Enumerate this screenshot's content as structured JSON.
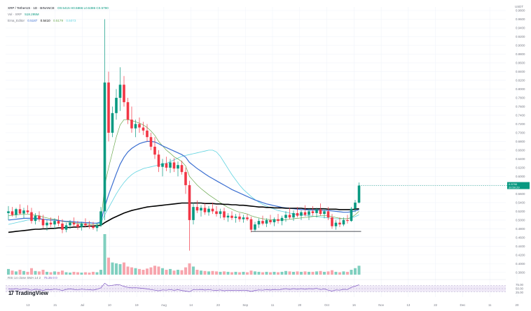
{
  "legend": {
    "symbol": "XRP / TetherUS · 1D · BINANCE",
    "ohlc": "O0.5415 H0.5866 L0.5386 C0.5790",
    "vol_label": "Vol · XRP",
    "vol_value": "518.295M",
    "ema_label": "Ema_Editor",
    "ema_values": [
      "0.5187",
      "0.5410",
      "0.5179",
      "0.5073"
    ]
  },
  "rsi_label": "RSI 14 close SMA 14 2",
  "rsi_values": "75.35   0   0",
  "price_tag": "0.5790",
  "price_tag_sub": "20:50:29",
  "top_right": "USDT",
  "logo_text": "TradingView",
  "colors": {
    "up": "#089981",
    "down": "#f23645",
    "ema_blue": "#3b6fd1",
    "ema_black": "#000000",
    "ema_green": "#6aa84f",
    "ema_cyan": "#5fd3e0",
    "rsi_line": "#7e57c2",
    "rsi_band": "#efe9f7"
  },
  "chart_data": {
    "type": "candlestick",
    "symbol": "XRP / TetherUS",
    "timeframe": "1D",
    "y_axis": {
      "labels": [
        "0.9800",
        "0.9600",
        "0.9400",
        "0.9200",
        "0.9000",
        "0.8800",
        "0.8600",
        "0.8400",
        "0.8200",
        "0.8000",
        "0.7800",
        "0.7600",
        "0.7400",
        "0.7200",
        "0.7000",
        "0.6800",
        "0.6600",
        "0.6400",
        "0.6200",
        "0.6000",
        "0.5800",
        "0.5600",
        "0.5400",
        "0.5200",
        "0.5000",
        "0.4800",
        "0.4600",
        "0.4400",
        "0.4200",
        "0.4000",
        "0.3800"
      ],
      "range": [
        0.375,
        0.988
      ]
    },
    "x_axis": {
      "labels": [
        "13",
        "21",
        "Jul",
        "10",
        "19",
        "Aug",
        "14",
        "23",
        "Sep",
        "11",
        "20",
        "Oct",
        "16",
        "Nov",
        "13",
        "22",
        "Dec",
        "11",
        "20"
      ]
    },
    "support_line": 0.474,
    "candles": [
      [
        0.516,
        0.532,
        0.5,
        0.52
      ],
      [
        0.52,
        0.53,
        0.508,
        0.512
      ],
      [
        0.512,
        0.528,
        0.505,
        0.525
      ],
      [
        0.525,
        0.536,
        0.512,
        0.515
      ],
      [
        0.515,
        0.528,
        0.504,
        0.522
      ],
      [
        0.522,
        0.534,
        0.514,
        0.518
      ],
      [
        0.518,
        0.528,
        0.492,
        0.498
      ],
      [
        0.498,
        0.516,
        0.49,
        0.51
      ],
      [
        0.51,
        0.52,
        0.496,
        0.502
      ],
      [
        0.502,
        0.512,
        0.482,
        0.488
      ],
      [
        0.488,
        0.5,
        0.476,
        0.494
      ],
      [
        0.494,
        0.506,
        0.484,
        0.49
      ],
      [
        0.49,
        0.504,
        0.48,
        0.498
      ],
      [
        0.498,
        0.51,
        0.486,
        0.492
      ],
      [
        0.492,
        0.502,
        0.47,
        0.478
      ],
      [
        0.478,
        0.494,
        0.472,
        0.488
      ],
      [
        0.488,
        0.5,
        0.48,
        0.494
      ],
      [
        0.494,
        0.506,
        0.484,
        0.49
      ],
      [
        0.49,
        0.498,
        0.478,
        0.484
      ],
      [
        0.484,
        0.496,
        0.476,
        0.492
      ],
      [
        0.492,
        0.504,
        0.484,
        0.488
      ],
      [
        0.488,
        0.498,
        0.48,
        0.486
      ],
      [
        0.486,
        0.496,
        0.478,
        0.482
      ],
      [
        0.482,
        0.494,
        0.474,
        0.488
      ],
      [
        0.488,
        0.53,
        0.484,
        0.52
      ],
      [
        0.52,
        0.96,
        0.5,
        0.815
      ],
      [
        0.815,
        0.84,
        0.68,
        0.7
      ],
      [
        0.7,
        0.76,
        0.69,
        0.745
      ],
      [
        0.745,
        0.8,
        0.73,
        0.78
      ],
      [
        0.78,
        0.85,
        0.75,
        0.81
      ],
      [
        0.81,
        0.83,
        0.76,
        0.77
      ],
      [
        0.77,
        0.78,
        0.72,
        0.73
      ],
      [
        0.73,
        0.76,
        0.7,
        0.71
      ],
      [
        0.71,
        0.73,
        0.69,
        0.72
      ],
      [
        0.72,
        0.735,
        0.7,
        0.712
      ],
      [
        0.712,
        0.725,
        0.695,
        0.705
      ],
      [
        0.705,
        0.72,
        0.68,
        0.69
      ],
      [
        0.69,
        0.7,
        0.66,
        0.668
      ],
      [
        0.668,
        0.69,
        0.64,
        0.65
      ],
      [
        0.65,
        0.66,
        0.61,
        0.622
      ],
      [
        0.622,
        0.64,
        0.6,
        0.63
      ],
      [
        0.63,
        0.645,
        0.612,
        0.62
      ],
      [
        0.62,
        0.64,
        0.608,
        0.632
      ],
      [
        0.632,
        0.642,
        0.61,
        0.618
      ],
      [
        0.618,
        0.634,
        0.6,
        0.626
      ],
      [
        0.626,
        0.636,
        0.604,
        0.61
      ],
      [
        0.61,
        0.62,
        0.56,
        0.58
      ],
      [
        0.58,
        0.59,
        0.43,
        0.5
      ],
      [
        0.5,
        0.54,
        0.49,
        0.53
      ],
      [
        0.53,
        0.545,
        0.516,
        0.522
      ],
      [
        0.522,
        0.534,
        0.508,
        0.528
      ],
      [
        0.528,
        0.538,
        0.512,
        0.518
      ],
      [
        0.518,
        0.532,
        0.51,
        0.526
      ],
      [
        0.526,
        0.54,
        0.514,
        0.52
      ],
      [
        0.52,
        0.532,
        0.508,
        0.514
      ],
      [
        0.514,
        0.526,
        0.504,
        0.52
      ],
      [
        0.52,
        0.528,
        0.5,
        0.506
      ],
      [
        0.506,
        0.516,
        0.496,
        0.51
      ],
      [
        0.51,
        0.52,
        0.5,
        0.505
      ],
      [
        0.505,
        0.514,
        0.494,
        0.508
      ],
      [
        0.508,
        0.516,
        0.496,
        0.502
      ],
      [
        0.502,
        0.512,
        0.494,
        0.506
      ],
      [
        0.506,
        0.514,
        0.498,
        0.502
      ],
      [
        0.502,
        0.508,
        0.472,
        0.478
      ],
      [
        0.478,
        0.496,
        0.474,
        0.49
      ],
      [
        0.49,
        0.504,
        0.482,
        0.498
      ],
      [
        0.498,
        0.51,
        0.488,
        0.492
      ],
      [
        0.492,
        0.504,
        0.484,
        0.5
      ],
      [
        0.5,
        0.512,
        0.49,
        0.495
      ],
      [
        0.495,
        0.506,
        0.486,
        0.502
      ],
      [
        0.502,
        0.514,
        0.492,
        0.498
      ],
      [
        0.498,
        0.51,
        0.488,
        0.505
      ],
      [
        0.505,
        0.52,
        0.496,
        0.512
      ],
      [
        0.512,
        0.528,
        0.502,
        0.506
      ],
      [
        0.506,
        0.522,
        0.498,
        0.516
      ],
      [
        0.516,
        0.53,
        0.506,
        0.51
      ],
      [
        0.51,
        0.522,
        0.5,
        0.518
      ],
      [
        0.518,
        0.534,
        0.508,
        0.512
      ],
      [
        0.512,
        0.526,
        0.5,
        0.52
      ],
      [
        0.52,
        0.532,
        0.51,
        0.516
      ],
      [
        0.516,
        0.528,
        0.506,
        0.524
      ],
      [
        0.524,
        0.538,
        0.51,
        0.514
      ],
      [
        0.514,
        0.526,
        0.504,
        0.52
      ],
      [
        0.52,
        0.53,
        0.5,
        0.506
      ],
      [
        0.506,
        0.514,
        0.48,
        0.486
      ],
      [
        0.486,
        0.5,
        0.478,
        0.494
      ],
      [
        0.494,
        0.506,
        0.484,
        0.49
      ],
      [
        0.49,
        0.506,
        0.486,
        0.5
      ],
      [
        0.5,
        0.512,
        0.492,
        0.498
      ],
      [
        0.498,
        0.53,
        0.496,
        0.526
      ],
      [
        0.526,
        0.546,
        0.518,
        0.54
      ],
      [
        0.54,
        0.586,
        0.538,
        0.579
      ]
    ],
    "volume_max": 1.0,
    "volume": [
      0.14,
      0.1,
      0.08,
      0.12,
      0.09,
      0.07,
      0.16,
      0.09,
      0.08,
      0.12,
      0.07,
      0.06,
      0.08,
      0.07,
      0.1,
      0.06,
      0.05,
      0.07,
      0.06,
      0.05,
      0.06,
      0.05,
      0.07,
      0.06,
      0.12,
      1.0,
      0.42,
      0.3,
      0.28,
      0.26,
      0.3,
      0.2,
      0.18,
      0.16,
      0.14,
      0.12,
      0.15,
      0.18,
      0.22,
      0.2,
      0.16,
      0.12,
      0.14,
      0.1,
      0.12,
      0.11,
      0.18,
      0.28,
      0.2,
      0.12,
      0.1,
      0.09,
      0.08,
      0.09,
      0.08,
      0.07,
      0.08,
      0.07,
      0.06,
      0.07,
      0.06,
      0.07,
      0.06,
      0.1,
      0.08,
      0.07,
      0.06,
      0.07,
      0.06,
      0.07,
      0.06,
      0.07,
      0.09,
      0.08,
      0.07,
      0.08,
      0.07,
      0.08,
      0.07,
      0.07,
      0.08,
      0.09,
      0.07,
      0.08,
      0.11,
      0.07,
      0.06,
      0.08,
      0.07,
      0.12,
      0.16,
      0.22
    ],
    "ema_slow": [
      0.472,
      0.473,
      0.474,
      0.475,
      0.476,
      0.477,
      0.478,
      0.479,
      0.479,
      0.48,
      0.48,
      0.481,
      0.481,
      0.482,
      0.482,
      0.483,
      0.483,
      0.484,
      0.484,
      0.485,
      0.485,
      0.486,
      0.486,
      0.487,
      0.488,
      0.494,
      0.499,
      0.504,
      0.508,
      0.512,
      0.516,
      0.519,
      0.522,
      0.524,
      0.526,
      0.528,
      0.53,
      0.531,
      0.532,
      0.533,
      0.534,
      0.535,
      0.536,
      0.537,
      0.538,
      0.539,
      0.539,
      0.539,
      0.539,
      0.539,
      0.539,
      0.538,
      0.538,
      0.538,
      0.537,
      0.537,
      0.536,
      0.536,
      0.535,
      0.535,
      0.534,
      0.534,
      0.533,
      0.532,
      0.531,
      0.53,
      0.53,
      0.529,
      0.529,
      0.528,
      0.528,
      0.528,
      0.527,
      0.527,
      0.527,
      0.527,
      0.527,
      0.526,
      0.526,
      0.526,
      0.526,
      0.526,
      0.526,
      0.525,
      0.525,
      0.525,
      0.524,
      0.524,
      0.524,
      0.524,
      0.525,
      0.526
    ],
    "ema_mid": [
      0.5,
      0.501,
      0.502,
      0.503,
      0.504,
      0.504,
      0.504,
      0.504,
      0.503,
      0.502,
      0.501,
      0.5,
      0.5,
      0.499,
      0.498,
      0.497,
      0.497,
      0.496,
      0.495,
      0.495,
      0.494,
      0.494,
      0.493,
      0.493,
      0.496,
      0.53,
      0.558,
      0.582,
      0.606,
      0.628,
      0.644,
      0.656,
      0.664,
      0.67,
      0.675,
      0.678,
      0.68,
      0.68,
      0.679,
      0.675,
      0.67,
      0.666,
      0.662,
      0.658,
      0.654,
      0.65,
      0.644,
      0.632,
      0.625,
      0.618,
      0.612,
      0.606,
      0.6,
      0.595,
      0.59,
      0.585,
      0.58,
      0.575,
      0.57,
      0.566,
      0.562,
      0.558,
      0.554,
      0.55,
      0.546,
      0.543,
      0.54,
      0.537,
      0.535,
      0.533,
      0.531,
      0.529,
      0.528,
      0.527,
      0.526,
      0.525,
      0.524,
      0.524,
      0.523,
      0.523,
      0.523,
      0.523,
      0.522,
      0.522,
      0.521,
      0.52,
      0.519,
      0.518,
      0.518,
      0.519,
      0.521,
      0.524
    ],
    "ema_fast": [
      0.51,
      0.511,
      0.512,
      0.513,
      0.513,
      0.514,
      0.512,
      0.511,
      0.51,
      0.507,
      0.505,
      0.503,
      0.502,
      0.5,
      0.497,
      0.496,
      0.495,
      0.494,
      0.492,
      0.492,
      0.491,
      0.49,
      0.489,
      0.489,
      0.493,
      0.58,
      0.62,
      0.655,
      0.69,
      0.718,
      0.73,
      0.73,
      0.728,
      0.725,
      0.722,
      0.718,
      0.712,
      0.704,
      0.694,
      0.68,
      0.67,
      0.66,
      0.653,
      0.645,
      0.64,
      0.634,
      0.624,
      0.6,
      0.59,
      0.58,
      0.572,
      0.565,
      0.558,
      0.552,
      0.546,
      0.54,
      0.534,
      0.529,
      0.525,
      0.521,
      0.518,
      0.516,
      0.514,
      0.51,
      0.507,
      0.505,
      0.503,
      0.502,
      0.501,
      0.5,
      0.5,
      0.5,
      0.501,
      0.502,
      0.503,
      0.504,
      0.505,
      0.506,
      0.507,
      0.508,
      0.509,
      0.51,
      0.51,
      0.51,
      0.508,
      0.506,
      0.504,
      0.503,
      0.503,
      0.506,
      0.512,
      0.52
    ],
    "ema_cyan": [
      0.49,
      0.492,
      0.494,
      0.496,
      0.498,
      0.5,
      0.501,
      0.502,
      0.502,
      0.502,
      0.501,
      0.5,
      0.5,
      0.499,
      0.498,
      0.497,
      0.496,
      0.496,
      0.495,
      0.494,
      0.494,
      0.493,
      0.493,
      0.492,
      0.494,
      0.512,
      0.528,
      0.544,
      0.56,
      0.574,
      0.586,
      0.596,
      0.604,
      0.61,
      0.614,
      0.618,
      0.62,
      0.622,
      0.624,
      0.626,
      0.628,
      0.63,
      0.634,
      0.638,
      0.642,
      0.646,
      0.648,
      0.65,
      0.652,
      0.654,
      0.656,
      0.658,
      0.66,
      0.66,
      0.656,
      0.646,
      0.632,
      0.618,
      0.604,
      0.592,
      0.58,
      0.57,
      0.562,
      0.554,
      0.547,
      0.541,
      0.536,
      0.532,
      0.528,
      0.525,
      0.522,
      0.52,
      0.518,
      0.516,
      0.514,
      0.513,
      0.512,
      0.511,
      0.51,
      0.509,
      0.508,
      0.507,
      0.506,
      0.505,
      0.504,
      0.503,
      0.503,
      0.503,
      0.503,
      0.505,
      0.508,
      0.512
    ],
    "rsi": [
      48,
      46,
      50,
      44,
      49,
      47,
      40,
      46,
      44,
      38,
      45,
      43,
      47,
      44,
      38,
      45,
      48,
      45,
      42,
      47,
      44,
      43,
      41,
      46,
      55,
      85,
      68,
      72,
      75,
      74,
      64,
      58,
      55,
      56,
      54,
      52,
      48,
      44,
      40,
      36,
      42,
      40,
      44,
      39,
      43,
      38,
      34,
      30,
      44,
      42,
      45,
      41,
      44,
      40,
      38,
      42,
      36,
      40,
      38,
      40,
      38,
      40,
      38,
      32,
      38,
      42,
      40,
      44,
      41,
      45,
      42,
      46,
      50,
      45,
      50,
      46,
      50,
      46,
      50,
      48,
      52,
      44,
      48,
      40,
      34,
      42,
      40,
      46,
      44,
      58,
      66,
      75
    ]
  }
}
